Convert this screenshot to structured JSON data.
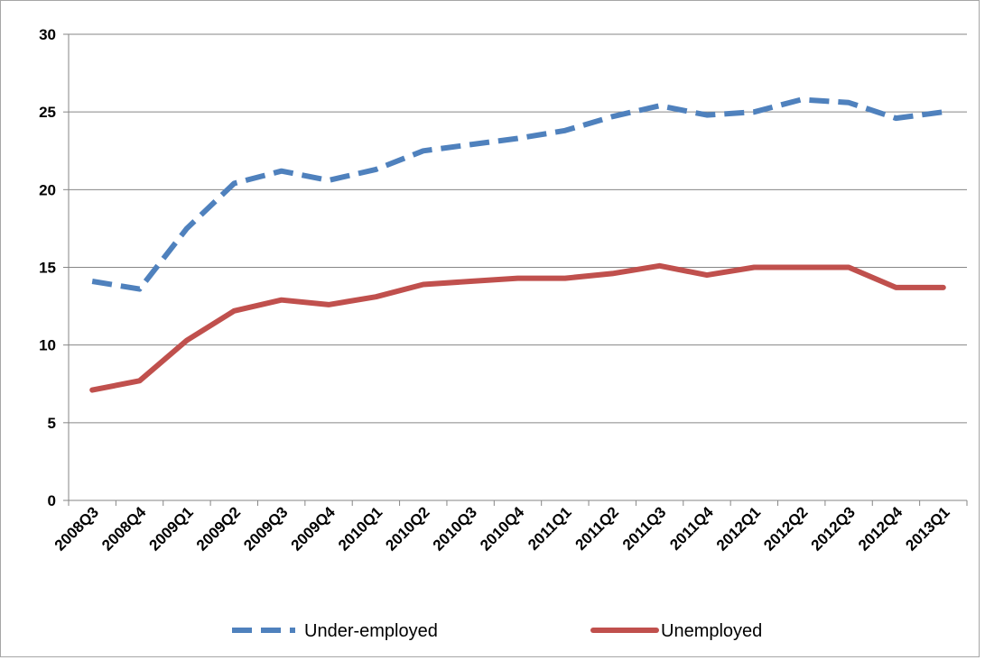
{
  "chart_data": {
    "type": "line",
    "categories": [
      "2008Q3",
      "2008Q4",
      "2009Q1",
      "2009Q2",
      "2009Q3",
      "2009Q4",
      "2010Q1",
      "2010Q2",
      "2010Q3",
      "2010Q4",
      "2011Q1",
      "2011Q2",
      "2011Q3",
      "2011Q4",
      "2012Q1",
      "2012Q2",
      "2012Q3",
      "2012Q4",
      "2013Q1"
    ],
    "series": [
      {
        "name": "Under-employed",
        "color": "#4f81bd",
        "dash": "dashed",
        "values": [
          14.1,
          13.6,
          17.5,
          20.4,
          21.2,
          20.6,
          21.3,
          22.5,
          22.9,
          23.3,
          23.8,
          24.7,
          25.4,
          24.8,
          25.0,
          25.8,
          25.6,
          24.6,
          25.0
        ]
      },
      {
        "name": "Unemployed",
        "color": "#c0504d",
        "dash": "solid",
        "values": [
          7.1,
          7.7,
          10.3,
          12.2,
          12.9,
          12.6,
          13.1,
          13.9,
          14.1,
          14.3,
          14.3,
          14.6,
          15.1,
          14.5,
          15.0,
          15.0,
          15.0,
          13.7,
          13.7
        ]
      }
    ],
    "yticks": [
      "0",
      "5",
      "10",
      "15",
      "20",
      "25",
      "30"
    ],
    "ylim": [
      0,
      30
    ],
    "grid": true,
    "legend_position": "bottom"
  }
}
